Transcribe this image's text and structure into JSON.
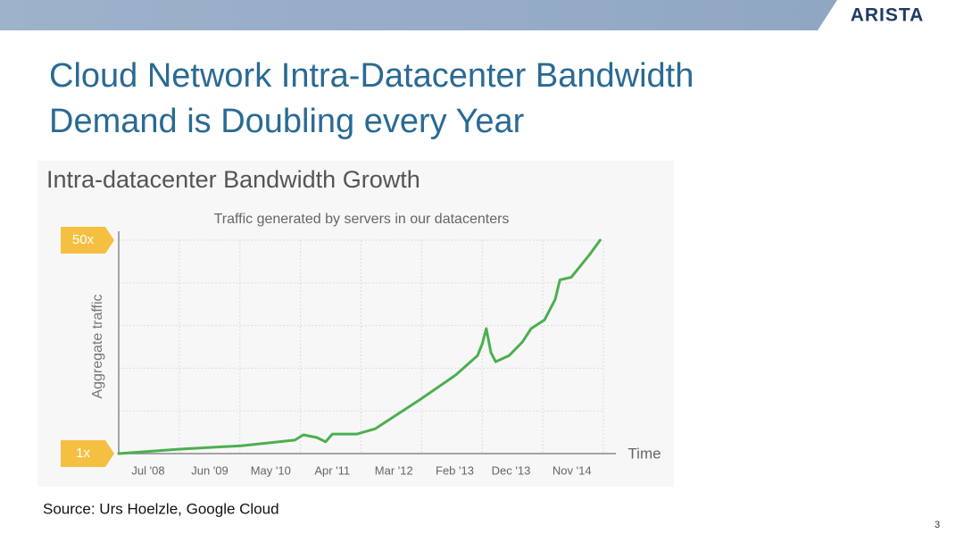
{
  "header": {
    "logo": "ARISTA"
  },
  "slide_title": [
    "Cloud Network Intra-Datacenter Bandwidth",
    "Demand is Doubling every Year"
  ],
  "chart_data": {
    "type": "line",
    "title": "Intra-datacenter Bandwidth Growth",
    "subtitle": "Traffic generated by servers in our datacenters",
    "y_label": "Aggregate traffic",
    "x_label": "Time",
    "x": [
      2008.06,
      2008.95,
      2009.89,
      2010.69,
      2010.82,
      2011.02,
      2011.15,
      2011.25,
      2011.62,
      2011.89,
      2012.55,
      2013.09,
      2013.42,
      2013.49,
      2013.55,
      2013.62,
      2013.69,
      2013.89,
      2014.09,
      2014.22,
      2014.42,
      2014.58,
      2014.65,
      2014.82,
      2015.09,
      2015.25
    ],
    "values": [
      1,
      2.0,
      2.8,
      4.1,
      5.3,
      4.7,
      3.7,
      5.5,
      5.5,
      6.7,
      13.3,
      19.0,
      23.5,
      26.2,
      29.7,
      24.2,
      22.1,
      23.5,
      26.6,
      29.7,
      31.7,
      36.4,
      40.9,
      41.5,
      46.6,
      50
    ],
    "color": "#4caf50",
    "xlim": [
      2008.06,
      2015.3
    ],
    "xticks": [
      {
        "value": 2008.5,
        "label": "Jul '08"
      },
      {
        "value": 2009.42,
        "label": "Jun '09"
      },
      {
        "value": 2010.33,
        "label": "May '10"
      },
      {
        "value": 2011.25,
        "label": "Apr '11"
      },
      {
        "value": 2012.17,
        "label": "Mar '12"
      },
      {
        "value": 2013.08,
        "label": "Feb '13"
      },
      {
        "value": 2013.92,
        "label": "Dec '13"
      },
      {
        "value": 2014.83,
        "label": "Nov '14"
      }
    ],
    "ylim": [
      1,
      50
    ],
    "yticks": [
      {
        "value": 1,
        "label": "1x"
      },
      {
        "value": 50,
        "label": "50x"
      }
    ],
    "grid": true
  },
  "source": "Source: Urs Hoelzle, Google Cloud",
  "page_number": "3"
}
